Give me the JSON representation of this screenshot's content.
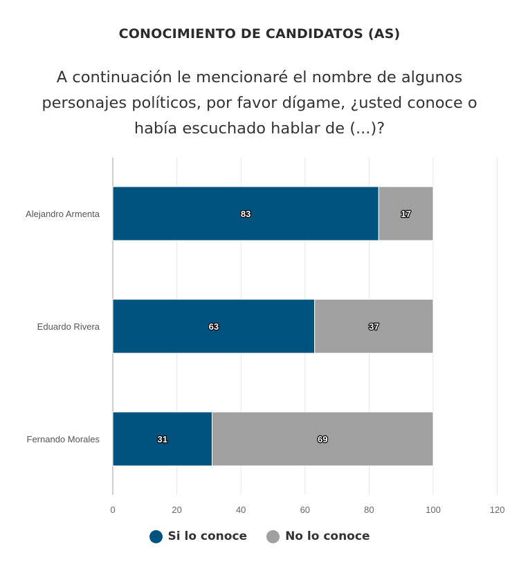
{
  "title": "CONOCIMIENTO DE CANDIDATOS (AS)",
  "subtitle_lines": [
    "A continuación le mencionaré el nombre de algunos",
    "personajes políticos, por favor dígame, ¿usted conoce o",
    "había escuchado hablar de (...)?"
  ],
  "chart_data": {
    "type": "bar",
    "orientation": "horizontal",
    "stacked": true,
    "title": "CONOCIMIENTO DE CANDIDATOS (AS)",
    "categories": [
      "Alejandro Armenta",
      "Eduardo Rivera",
      "Fernando Morales"
    ],
    "series": [
      {
        "name": "Si lo conoce",
        "values": [
          83,
          63,
          31
        ],
        "color": "#00527f"
      },
      {
        "name": "No lo conoce",
        "values": [
          17,
          37,
          69
        ],
        "color": "#a0a0a0"
      }
    ],
    "xlim": [
      0,
      120
    ],
    "xticks": [
      0,
      20,
      40,
      60,
      80,
      100,
      120
    ],
    "grid": true,
    "legend": "bottom",
    "xlabel": "",
    "ylabel": ""
  }
}
